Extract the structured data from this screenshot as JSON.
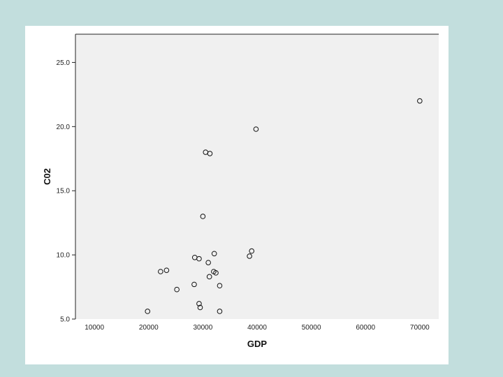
{
  "chart_data": {
    "type": "scatter",
    "title": "",
    "xlabel": "GDP",
    "ylabel": "C02",
    "xlim": [
      6500,
      73500
    ],
    "ylim": [
      5.0,
      27.2
    ],
    "xticks": [
      10000,
      20000,
      30000,
      40000,
      50000,
      60000,
      70000
    ],
    "xtick_labels": [
      "10000",
      "20000",
      "30000",
      "40000",
      "50000",
      "60000",
      "70000"
    ],
    "yticks": [
      5.0,
      10.0,
      15.0,
      20.0,
      25.0
    ],
    "ytick_labels": [
      "5.0",
      "10.0",
      "15.0",
      "20.0",
      "25.0"
    ],
    "grid": false,
    "plot_background": "#f0f0f0",
    "marker": "open-circle",
    "points": [
      {
        "x": 70000,
        "y": 22.0
      },
      {
        "x": 39800,
        "y": 19.8
      },
      {
        "x": 30500,
        "y": 18.0
      },
      {
        "x": 31300,
        "y": 17.9
      },
      {
        "x": 30000,
        "y": 13.0
      },
      {
        "x": 39000,
        "y": 10.3
      },
      {
        "x": 38600,
        "y": 9.9
      },
      {
        "x": 32100,
        "y": 10.1
      },
      {
        "x": 28500,
        "y": 9.8
      },
      {
        "x": 29300,
        "y": 9.7
      },
      {
        "x": 31000,
        "y": 9.4
      },
      {
        "x": 23300,
        "y": 8.8
      },
      {
        "x": 22200,
        "y": 8.7
      },
      {
        "x": 32000,
        "y": 8.7
      },
      {
        "x": 32400,
        "y": 8.6
      },
      {
        "x": 31200,
        "y": 8.3
      },
      {
        "x": 28400,
        "y": 7.7
      },
      {
        "x": 33100,
        "y": 7.6
      },
      {
        "x": 25200,
        "y": 7.3
      },
      {
        "x": 29300,
        "y": 6.2
      },
      {
        "x": 29500,
        "y": 5.9
      },
      {
        "x": 19800,
        "y": 5.6
      },
      {
        "x": 33100,
        "y": 5.6
      }
    ]
  }
}
